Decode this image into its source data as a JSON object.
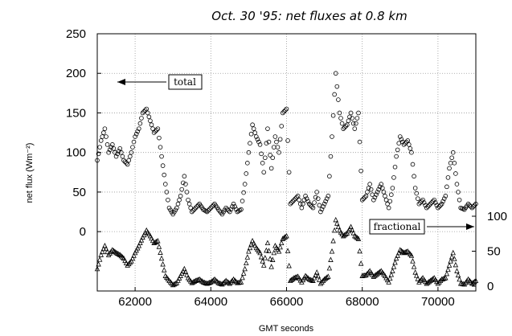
{
  "chart_data": {
    "type": "scatter",
    "title": "Oct. 30 '95: net fluxes at 0.8 km",
    "xlabel": "GMT seconds",
    "ylabel": "net flux (Wm⁻²)",
    "xlim": [
      61000,
      71000
    ],
    "ylim": [
      -75,
      250
    ],
    "y2lim": [
      0,
      100
    ],
    "x_ticks": [
      62000,
      64000,
      66000,
      68000,
      70000
    ],
    "y_ticks": [
      0,
      50,
      100,
      150,
      200,
      250
    ],
    "y2_ticks": [
      0,
      50,
      100
    ],
    "grid": true,
    "annotations": [
      {
        "text": "total",
        "arrow": "left"
      },
      {
        "text": "fractional",
        "arrow": "right"
      }
    ],
    "series": [
      {
        "marker": "circle",
        "axis": "left",
        "x": [
          61000,
          61100,
          61200,
          61300,
          61400,
          61500,
          61600,
          61700,
          61800,
          61900,
          62000,
          62100,
          62200,
          62300,
          62400,
          62500,
          62600,
          62700,
          62800,
          62900,
          63000,
          63100,
          63200,
          63300,
          63400,
          63500,
          63600,
          63700,
          63800,
          63900,
          64000,
          64100,
          64200,
          64300,
          64400,
          64500,
          64600,
          64700,
          64800,
          64900,
          65000,
          65100,
          65200,
          65300,
          65400,
          65500,
          65600,
          65700,
          65800,
          65900,
          66000,
          66100,
          66200,
          66300,
          66400,
          66500,
          66600,
          66700,
          66800,
          66900,
          67000,
          67100,
          67200,
          67300,
          67400,
          67500,
          67600,
          67700,
          67800,
          67900,
          68000,
          68100,
          68200,
          68300,
          68400,
          68500,
          68600,
          68700,
          68800,
          68900,
          69000,
          69100,
          69200,
          69300,
          69400,
          69500,
          69600,
          69700,
          69800,
          69900,
          70000,
          70100,
          70200,
          70300,
          70400,
          70500,
          70600,
          70700,
          70800,
          70900,
          71000
        ],
        "y": [
          90,
          115,
          130,
          100,
          110,
          95,
          105,
          90,
          85,
          100,
          120,
          130,
          150,
          155,
          140,
          125,
          130,
          95,
          60,
          30,
          22,
          30,
          45,
          70,
          40,
          25,
          30,
          35,
          28,
          25,
          30,
          35,
          28,
          22,
          30,
          25,
          35,
          25,
          28,
          60,
          100,
          135,
          120,
          110,
          75,
          130,
          80,
          120,
          100,
          150,
          155,
          35,
          40,
          45,
          30,
          45,
          35,
          30,
          50,
          25,
          35,
          45,
          120,
          200,
          150,
          130,
          135,
          150,
          130,
          150,
          40,
          45,
          60,
          40,
          50,
          60,
          45,
          30,
          55,
          95,
          120,
          110,
          115,
          100,
          55,
          35,
          40,
          30,
          35,
          40,
          30,
          35,
          45,
          80,
          100,
          60,
          30,
          28,
          35,
          30,
          35
        ]
      },
      {
        "marker": "triangle",
        "axis": "right",
        "x": [
          61000,
          61100,
          61200,
          61300,
          61400,
          61500,
          61600,
          61700,
          61800,
          61900,
          62000,
          62100,
          62200,
          62300,
          62400,
          62500,
          62600,
          62700,
          62800,
          62900,
          63000,
          63100,
          63200,
          63300,
          63400,
          63500,
          63600,
          63700,
          63800,
          63900,
          64000,
          64100,
          64200,
          64300,
          64400,
          64500,
          64600,
          64700,
          64800,
          64900,
          65000,
          65100,
          65200,
          65300,
          65400,
          65500,
          65600,
          65700,
          65800,
          65900,
          66000,
          66100,
          66200,
          66300,
          66400,
          66500,
          66600,
          66700,
          66800,
          66900,
          67000,
          67100,
          67200,
          67300,
          67400,
          67500,
          67600,
          67700,
          67800,
          67900,
          68000,
          68100,
          68200,
          68300,
          68400,
          68500,
          68600,
          68700,
          68800,
          68900,
          69000,
          69100,
          69200,
          69300,
          69400,
          69500,
          69600,
          69700,
          69800,
          69900,
          70000,
          70100,
          70200,
          70300,
          70400,
          70500,
          70600,
          70700,
          70800,
          70900,
          71000
        ],
        "y": [
          25,
          45,
          58,
          45,
          52,
          48,
          45,
          40,
          30,
          36,
          48,
          58,
          70,
          80,
          72,
          62,
          65,
          40,
          15,
          8,
          2,
          5,
          15,
          25,
          12,
          5,
          8,
          10,
          6,
          4,
          6,
          10,
          5,
          3,
          8,
          4,
          10,
          5,
          6,
          25,
          50,
          65,
          55,
          48,
          30,
          62,
          28,
          58,
          50,
          68,
          72,
          8,
          12,
          14,
          6,
          15,
          10,
          8,
          20,
          4,
          10,
          14,
          50,
          95,
          80,
          72,
          76,
          85,
          72,
          68,
          15,
          16,
          22,
          14,
          18,
          22,
          15,
          6,
          22,
          40,
          52,
          48,
          50,
          44,
          20,
          6,
          12,
          4,
          8,
          12,
          4,
          10,
          12,
          30,
          48,
          22,
          4,
          3,
          10,
          4,
          8
        ]
      }
    ]
  }
}
